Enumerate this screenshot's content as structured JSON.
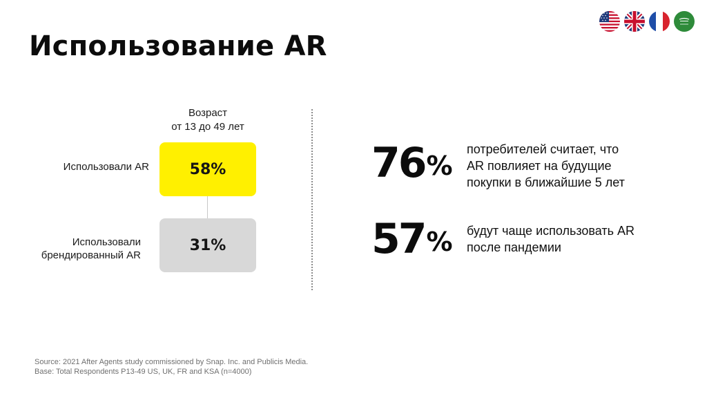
{
  "title": "Использование AR",
  "flags": [
    {
      "icon": "us-flag-icon"
    },
    {
      "icon": "uk-flag-icon"
    },
    {
      "icon": "france-flag-icon"
    },
    {
      "icon": "saudi-arabia-flag-icon"
    }
  ],
  "left_panel": {
    "age_header_line1": "Возраст",
    "age_header_line2": "от 13 до 49 лет",
    "row1_label": "Использовали AR",
    "row1_value": "58%",
    "row2_label": "Использовали брендированный AR",
    "row2_value": "31%",
    "colors": {
      "row1": "#fff000",
      "row2": "#d8d8d8"
    }
  },
  "stats": [
    {
      "number": "76",
      "percent_sign": "%",
      "lines": [
        "потребителей считает, что",
        "AR повлияет на будущие",
        "покупки в ближайшие 5 лет"
      ]
    },
    {
      "number": "57",
      "percent_sign": "%",
      "lines": [
        "будут чаще использовать AR",
        "после пандемии"
      ]
    }
  ],
  "footer": {
    "source": "Source: 2021 After Agents study commissioned by Snap. Inc. and Publicis Media.",
    "base": "Base: Total Respondents P13-49 US, UK, FR and KSA (n=4000)"
  }
}
